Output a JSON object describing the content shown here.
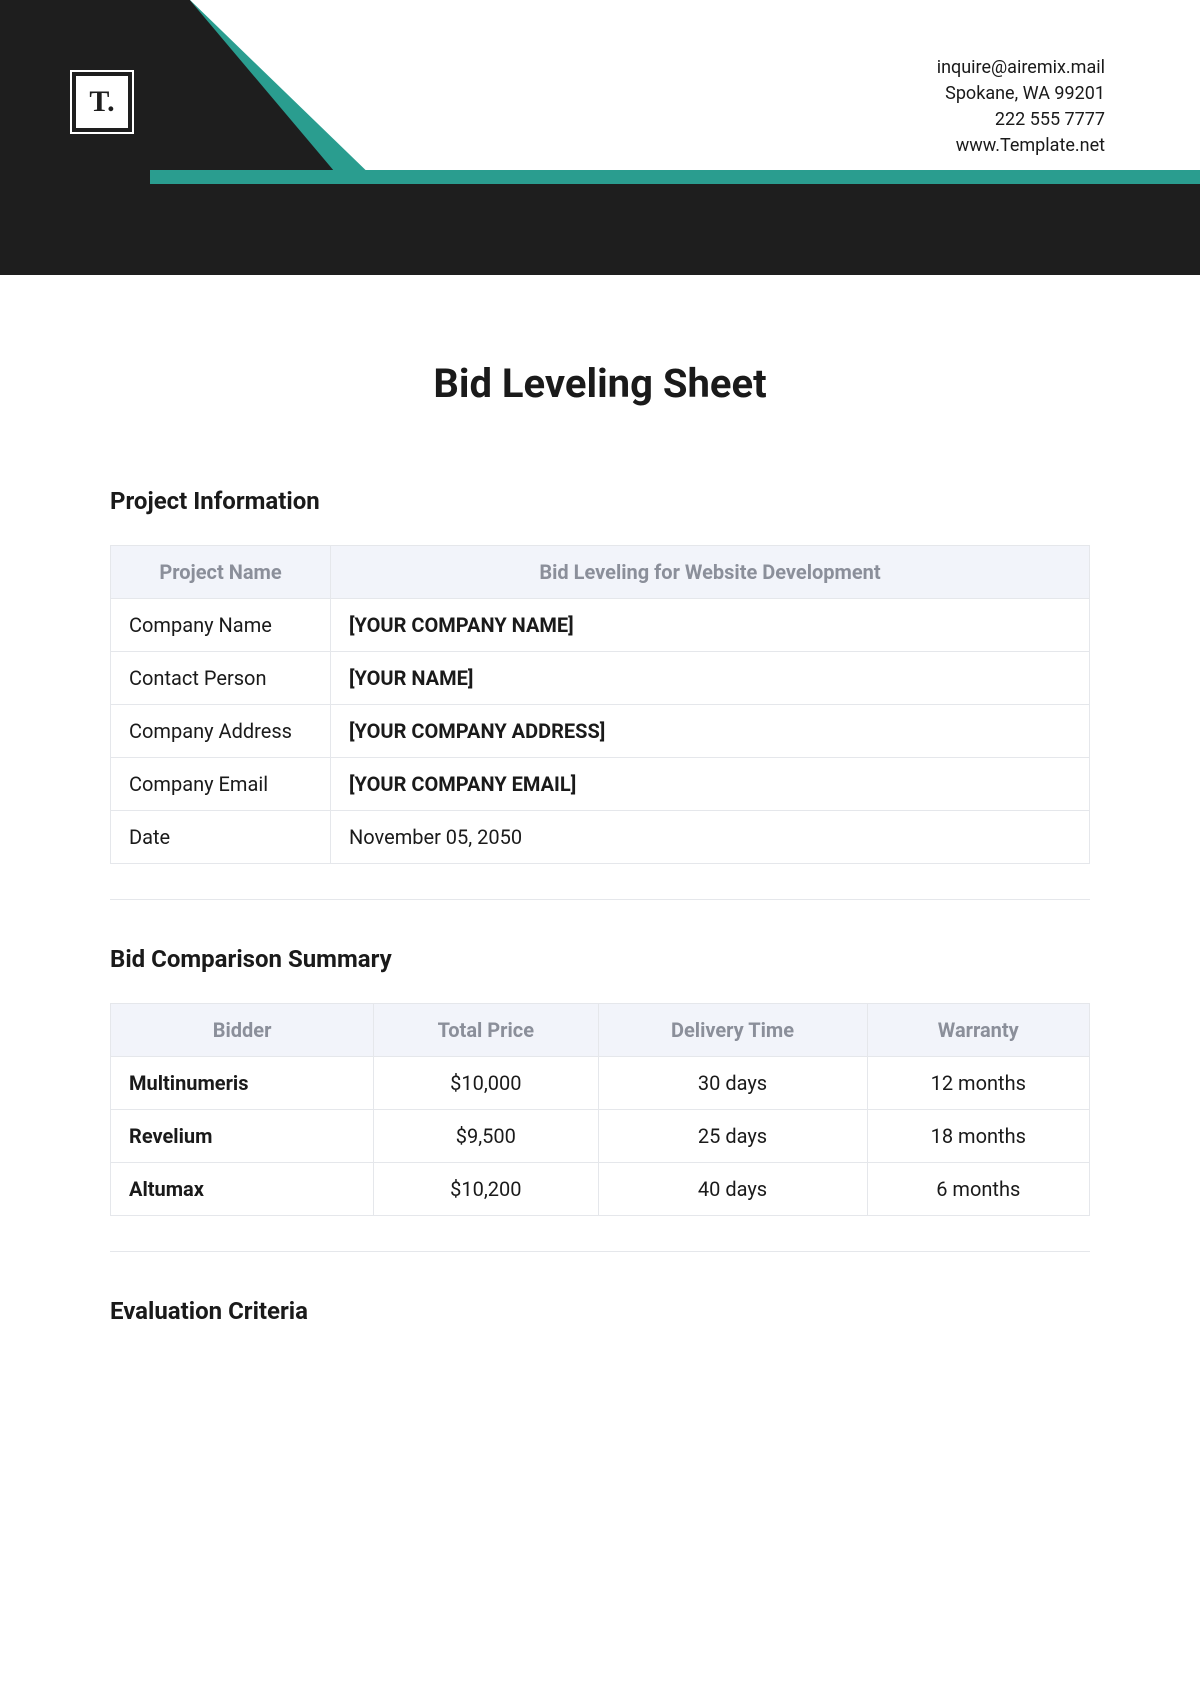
{
  "colors": {
    "dark": "#1e1e1e",
    "teal": "#2a9d8f",
    "table_header_bg": "#f2f4fa",
    "table_header_text": "#8b8f9a",
    "border": "#e5e7eb",
    "text": "#1a1a1a"
  },
  "logo": {
    "text": "T."
  },
  "contact": {
    "email": "inquire@airemix.mail",
    "address": "Spokane, WA 99201",
    "phone": "222 555 7777",
    "website": "www.Template.net"
  },
  "document": {
    "title": "Bid Leveling Sheet"
  },
  "sections": {
    "project_info": {
      "heading": "Project Information",
      "header_left": "Project Name",
      "header_right": "Bid Leveling for Website Development",
      "rows": [
        {
          "label": "Company Name",
          "value": "[YOUR COMPANY NAME]",
          "bold": true
        },
        {
          "label": "Contact Person",
          "value": "[YOUR NAME]",
          "bold": true
        },
        {
          "label": "Company Address",
          "value": "[YOUR COMPANY ADDRESS]",
          "bold": true
        },
        {
          "label": "Company Email",
          "value": "[YOUR COMPANY EMAIL]",
          "bold": true
        },
        {
          "label": "Date",
          "value": "November 05, 2050",
          "bold": false
        }
      ]
    },
    "bid_comparison": {
      "heading": "Bid Comparison Summary",
      "columns": [
        "Bidder",
        "Total Price",
        "Delivery Time",
        "Warranty"
      ],
      "rows": [
        {
          "bidder": "Multinumeris",
          "price": "$10,000",
          "delivery": "30 days",
          "warranty": "12 months"
        },
        {
          "bidder": "Revelium",
          "price": "$9,500",
          "delivery": "25 days",
          "warranty": "18 months"
        },
        {
          "bidder": "Altumax",
          "price": "$10,200",
          "delivery": "40 days",
          "warranty": "6 months"
        }
      ]
    },
    "evaluation": {
      "heading": "Evaluation Criteria"
    }
  }
}
